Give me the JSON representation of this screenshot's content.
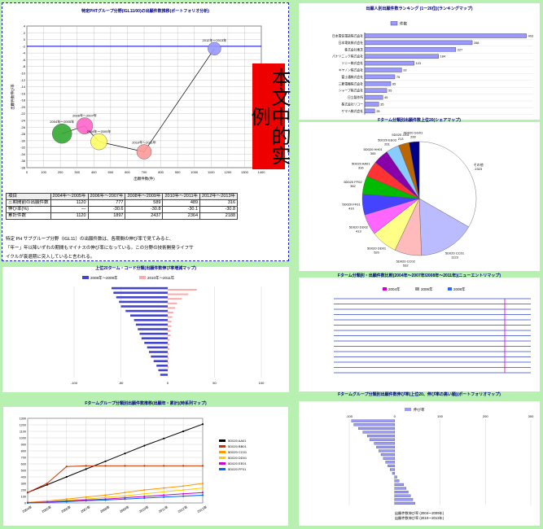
{
  "stamp": "本文中的实例",
  "charts": [
    {
      "title": "特定PHTグループ分野(IGL11/00)の出願件数推移(ポートフォリオ分析)",
      "chart_data": {
        "type": "bubble",
        "x_ticks": [
          "0",
          "100",
          "200",
          "300",
          "400",
          "500",
          "600",
          "700",
          "800",
          "900",
          "1000",
          "1100",
          "1200",
          "1300",
          "1400"
        ],
        "y_ticks": [
          "4",
          "2",
          "0",
          "-2",
          "-4",
          "-6",
          "-8",
          "-10",
          "-12",
          "-14",
          "-16",
          "-18",
          "-20",
          "-22",
          "-24",
          "-26",
          "-28",
          "-30",
          "-32",
          "-34",
          "-36",
          "-38"
        ],
        "xlabel": "出願件数(件)",
        "ylabel": "出願件数伸び率",
        "xlim": [
          0,
          1400
        ],
        "ylim": [
          -38,
          4
        ],
        "points": [
          {
            "label": "2004年〜2005年",
            "x": 210,
            "y": -27.9
          },
          {
            "label": "2006年〜2007年",
            "x": 345,
            "y": -25.6
          },
          {
            "label": "2008年〜2009年",
            "x": 430,
            "y": -30.3
          },
          {
            "label": "2010年〜2011年",
            "x": 700,
            "y": -33.3
          },
          {
            "label": "2012年〜2013年",
            "x": 1120,
            "y": -2.7
          }
        ],
        "bubble_colors": [
          "#33aa33",
          "#ff66cc",
          "#ffff66",
          "#ff9999",
          "#9999ff"
        ],
        "reference_y": -2
      },
      "table": {
        "header": [
          "項目",
          "2004年〜2005年",
          "2006年〜2007年",
          "2008年〜2009年",
          "2010年〜2011年",
          "2012年〜2013年"
        ],
        "rows": [
          [
            "三期間前の出願件数",
            "1120",
            "777",
            "589",
            "489",
            "316"
          ],
          [
            "伸び率(%)",
            "—",
            "-30.6",
            "-30.8",
            "-30.1",
            "-30.8"
          ],
          [
            "累計件数",
            "1120",
            "1897",
            "2437",
            "2364",
            "2188"
          ]
        ]
      },
      "notes": [
        "特定 PH サブグループ分野（IGL11）の出願件数は、各期間の伸び率で見てみると、",
        "「年ー」年以降いずれの期間もマイナスの伸び率になっている。この分野の技術開発ライフサ",
        "イクルが衰退期に突入していると言われる。"
      ]
    },
    {
      "title": "出願人別出願件数ランキング (1ー26位)(ランキングマップ)",
      "chart_data": {
        "type": "bar",
        "orientation": "horizontal",
        "legend": "件数",
        "categories": [
          "日本電信電話株式会社",
          "日本電気株式会社",
          "株式会社東芝",
          "パナソニック株式会社",
          "ソニー株式会社",
          "キヤノン株式会社",
          "富士通株式会社",
          "三菱電機株式会社",
          "シャープ株式会社",
          "日立製作所",
          "株式会社リコー",
          "ヤマハ株式会社"
        ],
        "values": [
          403,
          268,
          227,
          184,
          123,
          92,
          75,
          65,
          55,
          45,
          35,
          25
        ],
        "xlim": [
          0,
          420
        ]
      }
    },
    {
      "title": "Fターム分類別出願件数上位20(シェアマップ)",
      "chart_data": {
        "type": "pie",
        "labels": [
          "その他",
          "5D020 CC01",
          "5D020 CC02",
          "5D020 DD01",
          "5D020 DD02",
          "5D020 FF01",
          "5D020 FF02",
          "5D020 AA01",
          "5D020 HH01",
          "5D020 EE03",
          "5D020 JJ01",
          "5D020 GG01"
        ],
        "values": [
          2323,
          1123,
          532,
          520,
          413,
          410,
          362,
          316,
          305,
          261,
          213,
          200
        ],
        "colors": [
          "#ffffff",
          "#bbbbff",
          "#ffbbbb",
          "#ffff88",
          "#ff66ff",
          "#4444ff",
          "#00bb00",
          "#ff3333",
          "#8800aa",
          "#88ccff",
          "#bb6600",
          "#000088"
        ]
      }
    },
    {
      "title": "上位20ターム・コード分類(出願件数伸び率増減マップ)",
      "chart_data": {
        "type": "bar",
        "orientation": "horizontal",
        "legend": [
          "2008年〜2009年",
          "2010年〜2011年"
        ],
        "values_a": [
          -60,
          -58,
          -55,
          -52,
          -50,
          -45,
          -40,
          -36,
          -34,
          -32,
          -30,
          -28,
          -25,
          -22,
          -20,
          -18,
          -15,
          -12,
          -10,
          -8
        ],
        "values_b": [
          31,
          22,
          15,
          10,
          8,
          6,
          5,
          4,
          4,
          3,
          3,
          2,
          2,
          2,
          1,
          1,
          1,
          1,
          0,
          0
        ],
        "xlim": [
          -100,
          100
        ]
      }
    },
    {
      "title": "Fターム分類別・出願件数比較(2004年〜2007年/2008年〜2011年)(ニューエントリマップ)",
      "chart_data": {
        "type": "scatter",
        "legend": [
          "2004年",
          "2006年",
          "2008年"
        ],
        "rows": 15
      }
    },
    {
      "title": "Fタームグループ分類別出願件数推移(出願年・累計)(時系列マップ)",
      "chart_data": {
        "type": "line",
        "x": [
          "2004年",
          "2005年",
          "2006年",
          "2007年",
          "2008年",
          "2009年",
          "2010年",
          "2011年",
          "2012年",
          "2013年"
        ],
        "ylim": [
          0,
          1300
        ],
        "series": [
          {
            "name": "5D020 AA01",
            "values": [
              160,
              280,
              400,
              520,
              640,
              760,
              880,
              990,
              1100,
              1210
            ]
          },
          {
            "name": "5D020 BB01",
            "values": [
              160,
              300,
              560,
              570,
              570,
              570,
              570,
              570,
              570,
              570
            ]
          },
          {
            "name": "5D020 CC01",
            "values": [
              10,
              30,
              60,
              90,
              120,
              160,
              200,
              230,
              260,
              300
            ]
          },
          {
            "name": "5D020 DD01",
            "values": [
              5,
              20,
              40,
              60,
              85,
              110,
              140,
              170,
              200,
              230
            ]
          },
          {
            "name": "5D020 EE01",
            "values": [
              5,
              15,
              30,
              45,
              60,
              80,
              100,
              120,
              140,
              160
            ]
          },
          {
            "name": "5D020 FF01",
            "values": [
              0,
              10,
              20,
              35,
              45,
              60,
              75,
              90,
              105,
              120
            ]
          }
        ],
        "colors": [
          "#000000",
          "#cc3300",
          "#ff9900",
          "#ffcc00",
          "#cc00cc",
          "#0066ff"
        ]
      }
    },
    {
      "title": "Fタームグループ分類別出願件数伸び率(上位20、伸び率の高い順)(ポートフォリオマップ)",
      "chart_data": {
        "type": "bar",
        "orientation": "horizontal",
        "legend": "伸び率",
        "values": [
          -95,
          -90,
          -80,
          -70,
          -60,
          -55,
          -45,
          -40,
          -35,
          -30,
          -25,
          -20,
          -15,
          -10,
          -5,
          5,
          10,
          20,
          25,
          30,
          35,
          40,
          45
        ],
        "xlim": [
          -100,
          300
        ]
      },
      "footer": [
        "出願件数伸び率 (2004〜2009年)",
        "出願件数伸び率 (2010〜2013年)"
      ]
    }
  ]
}
